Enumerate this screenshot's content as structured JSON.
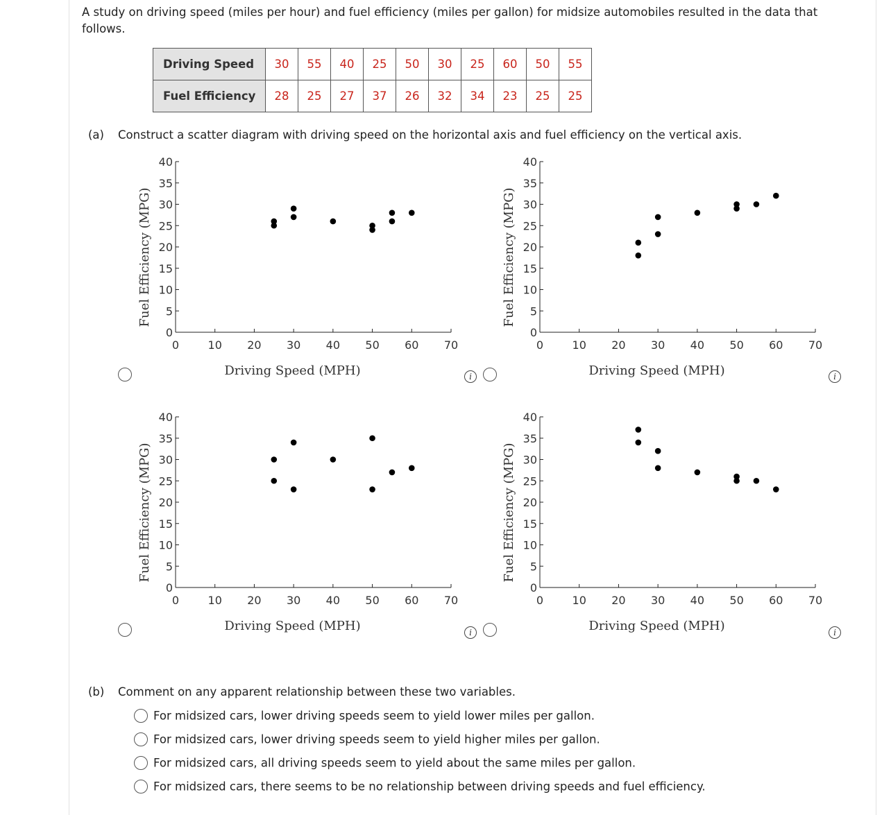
{
  "intro": "A study on driving speed (miles per hour) and fuel efficiency (miles per gallon) for midsize automobiles resulted in the data that follows.",
  "table": {
    "row1_label": "Driving Speed",
    "row1_values": [
      "30",
      "55",
      "40",
      "25",
      "50",
      "30",
      "25",
      "60",
      "50",
      "55"
    ],
    "row2_label": "Fuel Efficiency",
    "row2_values": [
      "28",
      "25",
      "27",
      "37",
      "26",
      "32",
      "34",
      "23",
      "25",
      "25"
    ]
  },
  "part_a": {
    "label": "(a)",
    "text": "Construct a scatter diagram with driving speed on the horizontal axis and fuel efficiency on the vertical axis."
  },
  "part_b": {
    "label": "(b)",
    "text": "Comment on any apparent relationship between these two variables.",
    "options": [
      "For midsized cars, lower driving speeds seem to yield lower miles per gallon.",
      "For midsized cars, lower driving speeds seem to yield higher miles per gallon.",
      "For midsized cars, all driving speeds seem to yield about the same miles per gallon.",
      "For midsized cars, there seems to be no relationship between driving speeds and fuel efficiency."
    ]
  },
  "info_glyph": "i",
  "chart_data": [
    {
      "type": "scatter",
      "xlabel": "Driving Speed (MPH)",
      "ylabel": "Fuel Efficiency (MPG)",
      "xlim": [
        0,
        70
      ],
      "ylim": [
        0,
        40
      ],
      "xticks": [
        0,
        10,
        20,
        30,
        40,
        50,
        60,
        70
      ],
      "yticks": [
        0,
        5,
        10,
        15,
        20,
        25,
        30,
        35,
        40
      ],
      "points": [
        [
          25,
          26
        ],
        [
          25,
          25
        ],
        [
          30,
          29
        ],
        [
          30,
          27
        ],
        [
          40,
          26
        ],
        [
          50,
          25
        ],
        [
          50,
          24
        ],
        [
          55,
          28
        ],
        [
          55,
          26
        ],
        [
          60,
          28
        ]
      ]
    },
    {
      "type": "scatter",
      "xlabel": "Driving Speed (MPH)",
      "ylabel": "Fuel Efficiency (MPG)",
      "xlim": [
        0,
        70
      ],
      "ylim": [
        0,
        40
      ],
      "xticks": [
        0,
        10,
        20,
        30,
        40,
        50,
        60,
        70
      ],
      "yticks": [
        0,
        5,
        10,
        15,
        20,
        25,
        30,
        35,
        40
      ],
      "points": [
        [
          25,
          21
        ],
        [
          25,
          18
        ],
        [
          30,
          27
        ],
        [
          30,
          23
        ],
        [
          40,
          28
        ],
        [
          50,
          30
        ],
        [
          50,
          29
        ],
        [
          55,
          30
        ],
        [
          60,
          32
        ]
      ]
    },
    {
      "type": "scatter",
      "xlabel": "Driving Speed (MPH)",
      "ylabel": "Fuel Efficiency (MPG)",
      "xlim": [
        0,
        70
      ],
      "ylim": [
        0,
        40
      ],
      "xticks": [
        0,
        10,
        20,
        30,
        40,
        50,
        60,
        70
      ],
      "yticks": [
        0,
        5,
        10,
        15,
        20,
        25,
        30,
        35,
        40
      ],
      "points": [
        [
          25,
          30
        ],
        [
          25,
          25
        ],
        [
          30,
          34
        ],
        [
          30,
          23
        ],
        [
          40,
          30
        ],
        [
          50,
          35
        ],
        [
          50,
          23
        ],
        [
          55,
          27
        ],
        [
          60,
          28
        ]
      ]
    },
    {
      "type": "scatter",
      "xlabel": "Driving Speed (MPH)",
      "ylabel": "Fuel Efficiency (MPG)",
      "xlim": [
        0,
        70
      ],
      "ylim": [
        0,
        40
      ],
      "xticks": [
        0,
        10,
        20,
        30,
        40,
        50,
        60,
        70
      ],
      "yticks": [
        0,
        5,
        10,
        15,
        20,
        25,
        30,
        35,
        40
      ],
      "points": [
        [
          25,
          37
        ],
        [
          25,
          34
        ],
        [
          30,
          32
        ],
        [
          30,
          28
        ],
        [
          40,
          27
        ],
        [
          50,
          26
        ],
        [
          50,
          25
        ],
        [
          55,
          25
        ],
        [
          60,
          23
        ]
      ]
    }
  ]
}
